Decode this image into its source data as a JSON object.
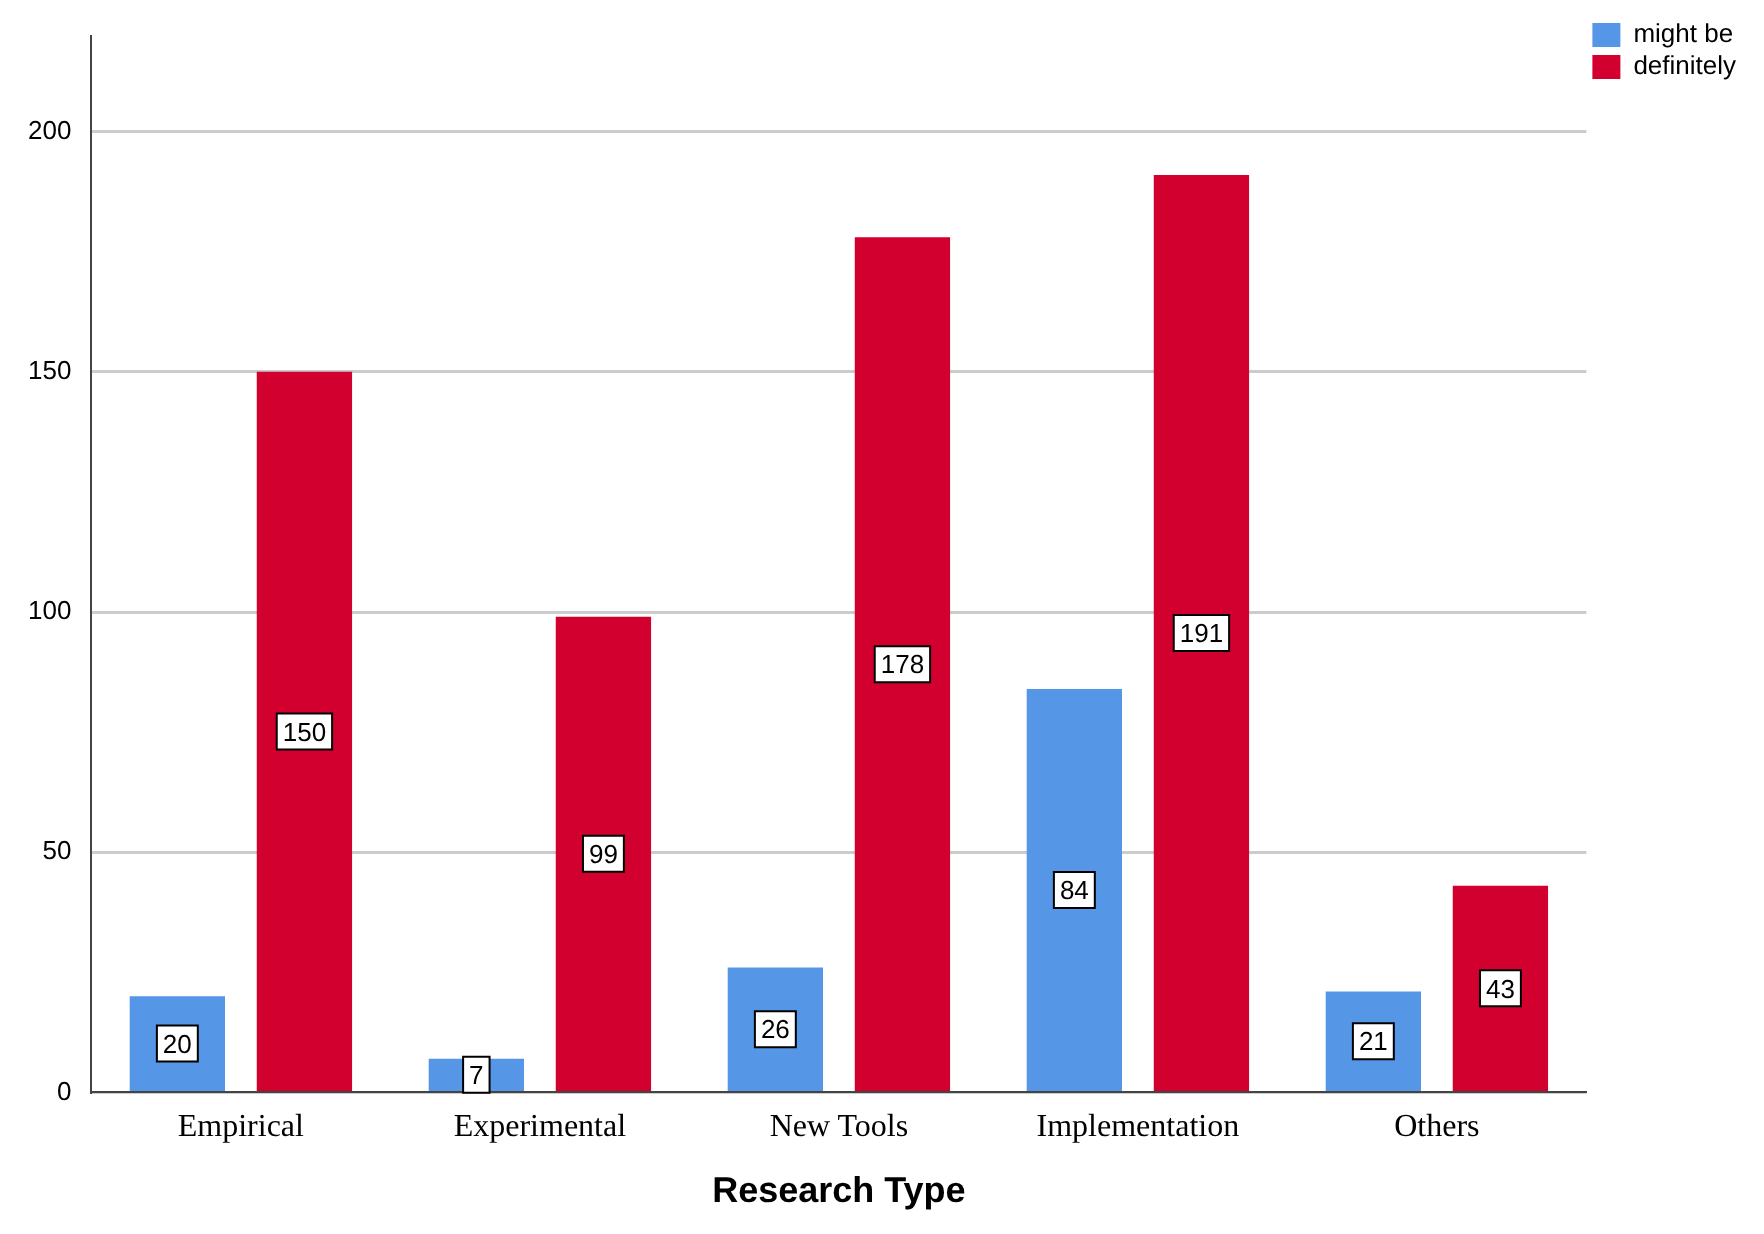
{
  "chart_data": {
    "type": "bar",
    "xlabel": "Research Type",
    "categories": [
      "Empirical",
      "Experimental",
      "New Tools",
      "Implementation",
      "Others"
    ],
    "series": [
      {
        "name": "might be",
        "color": "#5596e6",
        "values": [
          20,
          7,
          26,
          84,
          21
        ]
      },
      {
        "name": "definitely",
        "color": "#d2002e",
        "values": [
          150,
          99,
          178,
          191,
          43
        ]
      }
    ],
    "ylim": [
      0,
      220
    ],
    "yticks": [
      0,
      50,
      100,
      150,
      200
    ],
    "grid": "y",
    "legend": "top right",
    "data_labels": true
  }
}
